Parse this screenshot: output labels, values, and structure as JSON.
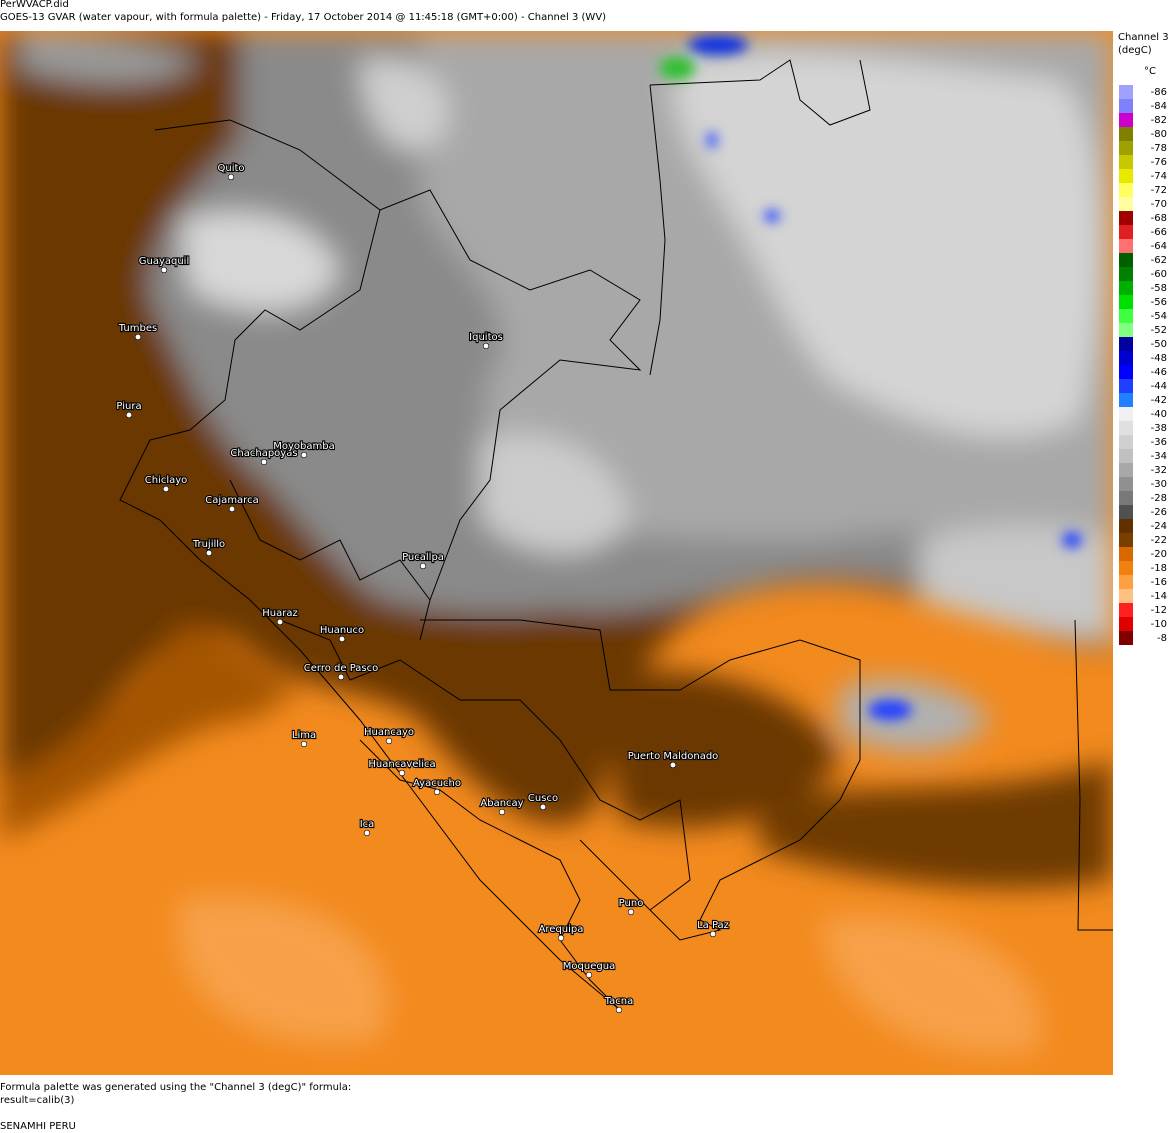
{
  "header": {
    "file": "PerWVACP.did",
    "title": "GOES-13 GVAR (water vapour, with formula palette) - Friday, 17 October 2014 @ 11:45:18 (GMT+0:00) - Channel 3 (WV)"
  },
  "legend": {
    "title": "Channel 3",
    "unit_line": "(degC)",
    "unit": "°C",
    "items": [
      {
        "value": -86,
        "color": "#a0a0ff"
      },
      {
        "value": -84,
        "color": "#8080ff"
      },
      {
        "value": -82,
        "color": "#cc00cc"
      },
      {
        "value": -80,
        "color": "#808000"
      },
      {
        "value": -78,
        "color": "#a0a000"
      },
      {
        "value": -76,
        "color": "#c8c800"
      },
      {
        "value": -74,
        "color": "#e8e800"
      },
      {
        "value": -72,
        "color": "#ffff60"
      },
      {
        "value": -70,
        "color": "#ffffa0"
      },
      {
        "value": -68,
        "color": "#a00000"
      },
      {
        "value": -66,
        "color": "#e02020"
      },
      {
        "value": -64,
        "color": "#ff7070"
      },
      {
        "value": -62,
        "color": "#006000"
      },
      {
        "value": -60,
        "color": "#008000"
      },
      {
        "value": -58,
        "color": "#00b000"
      },
      {
        "value": -56,
        "color": "#00e000"
      },
      {
        "value": -54,
        "color": "#40ff40"
      },
      {
        "value": -52,
        "color": "#80ff80"
      },
      {
        "value": -50,
        "color": "#0000a0"
      },
      {
        "value": -48,
        "color": "#0000d0"
      },
      {
        "value": -46,
        "color": "#0000ff"
      },
      {
        "value": -44,
        "color": "#2040ff"
      },
      {
        "value": -42,
        "color": "#2080ff"
      },
      {
        "value": -40,
        "color": "#f0f0f0"
      },
      {
        "value": -38,
        "color": "#e0e0e0"
      },
      {
        "value": -36,
        "color": "#d0d0d0"
      },
      {
        "value": -34,
        "color": "#c0c0c0"
      },
      {
        "value": -32,
        "color": "#a8a8a8"
      },
      {
        "value": -30,
        "color": "#909090"
      },
      {
        "value": -28,
        "color": "#787878"
      },
      {
        "value": -26,
        "color": "#505050"
      },
      {
        "value": -24,
        "color": "#603000"
      },
      {
        "value": -22,
        "color": "#7a3f00"
      },
      {
        "value": -20,
        "color": "#d86800"
      },
      {
        "value": -18,
        "color": "#f08010"
      },
      {
        "value": -16,
        "color": "#ffa040"
      },
      {
        "value": -14,
        "color": "#ffc080"
      },
      {
        "value": -12,
        "color": "#ff2020"
      },
      {
        "value": -10,
        "color": "#e00000"
      },
      {
        "value": -8,
        "color": "#800000"
      }
    ]
  },
  "map": {
    "cities": [
      "Quito",
      "Guayaquil",
      "Tumbes",
      "Piura",
      "Chiclayo",
      "Chachapoyas",
      "Moyobamba",
      "Cajamarca",
      "Trujillo",
      "Iquitos",
      "Pucallpa",
      "Huaraz",
      "Huanuco",
      "Cerro de Pasco",
      "Lima",
      "Huancayo",
      "Huancavelica",
      "Ayacucho",
      "Abancay",
      "Cusco",
      "Ica",
      "Puerto Maldonado",
      "Puno",
      "La Paz",
      "Arequipa",
      "Moquegua",
      "Tacna"
    ]
  },
  "footer": {
    "lines": [
      "Formula palette was generated using the \"Channel 3 (degC)\" formula:",
      "result=calib(3)",
      "SENAMHI PERU"
    ]
  }
}
